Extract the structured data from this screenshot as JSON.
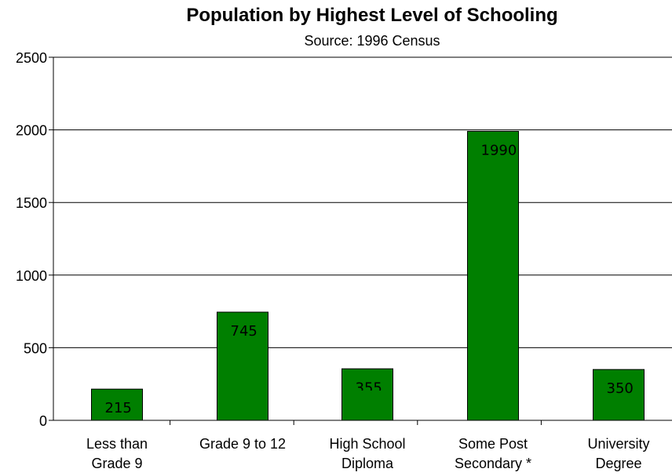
{
  "chart_data": {
    "type": "bar",
    "title": "Population by Highest Level of Schooling",
    "subtitle": "Source: 1996 Census",
    "categories": [
      [
        "Less than",
        "Grade 9"
      ],
      [
        "Grade 9 to 12"
      ],
      [
        "High School",
        "Diploma"
      ],
      [
        "Some Post",
        "Secondary *"
      ],
      [
        "University",
        "Degree"
      ]
    ],
    "values": [
      215,
      745,
      355,
      1990,
      350
    ],
    "value_labels": [
      "215",
      "745",
      "355",
      "1990",
      "350"
    ],
    "y_ticks": [
      "0",
      "500",
      "1000",
      "1500",
      "2000",
      "2500"
    ],
    "ylim": [
      0,
      2500
    ],
    "grid": true,
    "colors": {
      "bar": "#007f00",
      "bar_stroke": "#000000",
      "grid": "#000000"
    }
  }
}
